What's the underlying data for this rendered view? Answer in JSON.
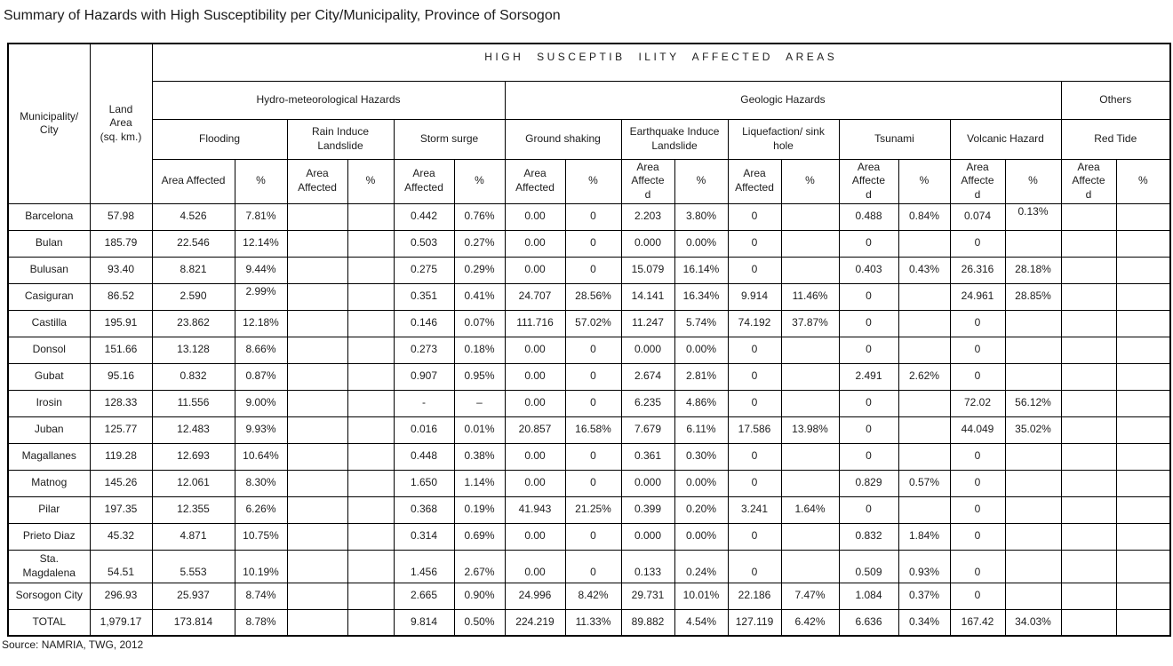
{
  "title": "Summary of Hazards with High Susceptibility per City/Municipality, Province of Sorsogon",
  "source": "Source: NAMRIA, TWG, 2012",
  "table": {
    "main_header": "HIGH SUSCEPTIB ILITY AFFECTED AREAS",
    "municipality_header": "Municipality/\nCity",
    "land_area_header": "Land\nArea\n(sq. km.)",
    "groups": [
      {
        "label": "Hydro-meteorological Hazards"
      },
      {
        "label": "Geologic Hazards"
      },
      {
        "label": "Others"
      }
    ],
    "hazards": [
      {
        "key": "flooding",
        "label": "Flooding",
        "area_label": "Area Affected",
        "pct_label": "%"
      },
      {
        "key": "rain-landslide",
        "label": "Rain Induce\nLandslide",
        "area_label": "Area\nAffected",
        "pct_label": "%"
      },
      {
        "key": "storm-surge",
        "label": "Storm surge",
        "area_label": "Area\nAffected",
        "pct_label": "%"
      },
      {
        "key": "ground-shaking",
        "label": "Ground shaking",
        "area_label": "Area\nAffected",
        "pct_label": "%"
      },
      {
        "key": "eq-landslide",
        "label": "Earthquake Induce\nLandslide",
        "area_label": "Area\nAffecte\nd",
        "pct_label": "%"
      },
      {
        "key": "liquefaction",
        "label": "Liquefaction/ sink\nhole",
        "area_label": "Area\nAffected",
        "pct_label": "%"
      },
      {
        "key": "tsunami",
        "label": "Tsunami",
        "area_label": "Area\nAffecte\nd",
        "pct_label": "%"
      },
      {
        "key": "volcanic",
        "label": "Volcanic Hazard",
        "area_label": "Area\nAffecte\nd",
        "pct_label": "%"
      },
      {
        "key": "red-tide",
        "label": "Red Tide",
        "area_label": "Area\nAffecte\nd",
        "pct_label": "%"
      }
    ],
    "rows": [
      {
        "name": "Barcelona",
        "land": "57.98",
        "cells": [
          "4.526",
          "7.81%",
          "",
          "",
          "0.442",
          "0.76%",
          "0.00",
          "0",
          "2.203",
          "3.80%",
          "0",
          "",
          "0.488",
          "0.84%",
          "0.074",
          "0.13%",
          "",
          ""
        ]
      },
      {
        "name": "Bulan",
        "land": "185.79",
        "cells": [
          "22.546",
          "12.14%",
          "",
          "",
          "0.503",
          "0.27%",
          "0.00",
          "0",
          "0.000",
          "0.00%",
          "0",
          "",
          "0",
          "",
          "0",
          "",
          "",
          ""
        ]
      },
      {
        "name": "Bulusan",
        "land": "93.40",
        "cells": [
          "8.821",
          "9.44%",
          "",
          "",
          "0.275",
          "0.29%",
          "0.00",
          "0",
          "15.079",
          "16.14%",
          "0",
          "",
          "0.403",
          "0.43%",
          "26.316",
          "28.18%",
          "",
          ""
        ]
      },
      {
        "name": "Casiguran",
        "land": "86.52",
        "cells": [
          "2.590",
          "2.99%",
          "",
          "",
          "0.351",
          "0.41%",
          "24.707",
          "28.56%",
          "14.141",
          "16.34%",
          "9.914",
          "11.46%",
          "0",
          "",
          "24.961",
          "28.85%",
          "",
          ""
        ]
      },
      {
        "name": "Castilla",
        "land": "195.91",
        "cells": [
          "23.862",
          "12.18%",
          "",
          "",
          "0.146",
          "0.07%",
          "111.716",
          "57.02%",
          "11.247",
          "5.74%",
          "74.192",
          "37.87%",
          "0",
          "",
          "0",
          "",
          "",
          ""
        ]
      },
      {
        "name": "Donsol",
        "land": "151.66",
        "cells": [
          "13.128",
          "8.66%",
          "",
          "",
          "0.273",
          "0.18%",
          "0.00",
          "0",
          "0.000",
          "0.00%",
          "0",
          "",
          "0",
          "",
          "0",
          "",
          "",
          ""
        ]
      },
      {
        "name": "Gubat",
        "land": "95.16",
        "cells": [
          "0.832",
          "0.87%",
          "",
          "",
          "0.907",
          "0.95%",
          "0.00",
          "0",
          "2.674",
          "2.81%",
          "0",
          "",
          "2.491",
          "2.62%",
          "0",
          "",
          "",
          ""
        ]
      },
      {
        "name": "Irosin",
        "land": "128.33",
        "cells": [
          "11.556",
          "9.00%",
          "",
          "",
          "-",
          "–",
          "0.00",
          "0",
          "6.235",
          "4.86%",
          "0",
          "",
          "0",
          "",
          "72.02",
          "56.12%",
          "",
          ""
        ]
      },
      {
        "name": "Juban",
        "land": "125.77",
        "cells": [
          "12.483",
          "9.93%",
          "",
          "",
          "0.016",
          "0.01%",
          "20.857",
          "16.58%",
          "7.679",
          "6.11%",
          "17.586",
          "13.98%",
          "0",
          "",
          "44.049",
          "35.02%",
          "",
          ""
        ]
      },
      {
        "name": "Magallanes",
        "land": "119.28",
        "cells": [
          "12.693",
          "10.64%",
          "",
          "",
          "0.448",
          "0.38%",
          "0.00",
          "0",
          "0.361",
          "0.30%",
          "0",
          "",
          "0",
          "",
          "0",
          "",
          "",
          ""
        ]
      },
      {
        "name": "Matnog",
        "land": "145.26",
        "cells": [
          "12.061",
          "8.30%",
          "",
          "",
          "1.650",
          "1.14%",
          "0.00",
          "0",
          "0.000",
          "0.00%",
          "0",
          "",
          "0.829",
          "0.57%",
          "0",
          "",
          "",
          ""
        ]
      },
      {
        "name": "Pilar",
        "land": "197.35",
        "cells": [
          "12.355",
          "6.26%",
          "",
          "",
          "0.368",
          "0.19%",
          "41.943",
          "21.25%",
          "0.399",
          "0.20%",
          "3.241",
          "1.64%",
          "0",
          "",
          "0",
          "",
          "",
          ""
        ]
      },
      {
        "name": "Prieto Diaz",
        "land": "45.32",
        "cells": [
          "4.871",
          "10.75%",
          "",
          "",
          "0.314",
          "0.69%",
          "0.00",
          "0",
          "0.000",
          "0.00%",
          "0",
          "",
          "0.832",
          "1.84%",
          "0",
          "",
          "",
          ""
        ]
      },
      {
        "name": "Sta.\nMagdalena",
        "land": "54.51",
        "cells": [
          "5.553",
          "10.19%",
          "",
          "",
          "1.456",
          "2.67%",
          "0.00",
          "0",
          "0.133",
          "0.24%",
          "0",
          "",
          "0.509",
          "0.93%",
          "0",
          "",
          "",
          ""
        ]
      },
      {
        "name": "Sorsogon City",
        "land": "296.93",
        "cells": [
          "25.937",
          "8.74%",
          "",
          "",
          "2.665",
          "0.90%",
          "24.996",
          "8.42%",
          "29.731",
          "10.01%",
          "22.186",
          "7.47%",
          "1.084",
          "0.37%",
          "0",
          "",
          "",
          ""
        ]
      },
      {
        "name": "TOTAL",
        "land": "1,979.17",
        "cells": [
          "173.814",
          "8.78%",
          "",
          "",
          "9.814",
          "0.50%",
          "224.219",
          "11.33%",
          "89.882",
          "4.54%",
          "127.119",
          "6.42%",
          "6.636",
          "0.34%",
          "167.42",
          "34.03%",
          "",
          ""
        ]
      }
    ],
    "raised_cells": [
      [
        0,
        15
      ],
      [
        3,
        1
      ]
    ],
    "tall_rows": [
      13
    ],
    "bottom_aligned_rows": [
      13
    ]
  }
}
